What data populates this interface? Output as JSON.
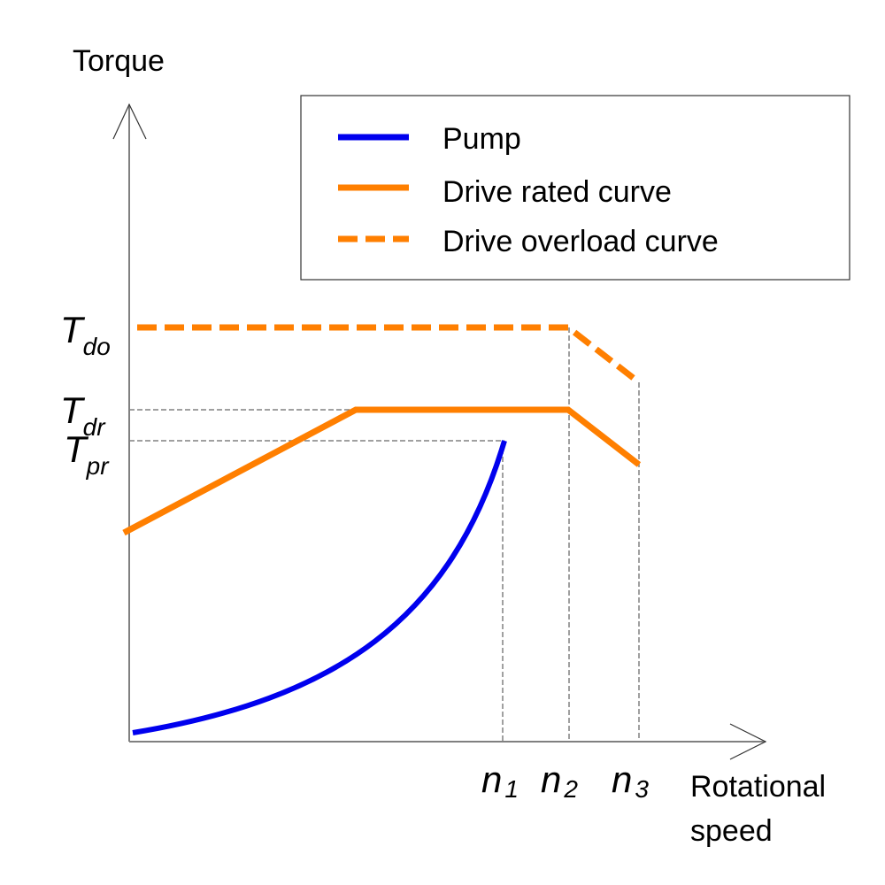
{
  "axes": {
    "y_label": "Torque",
    "x_label_line1": "Rotational",
    "x_label_line2": "speed"
  },
  "legend": {
    "items": [
      {
        "label": "Pump",
        "color": "#0000ee",
        "style": "solid"
      },
      {
        "label": "Drive rated curve",
        "color": "#ff7f00",
        "style": "solid"
      },
      {
        "label": "Drive overload curve",
        "color": "#ff7f00",
        "style": "dashed"
      }
    ]
  },
  "y_markers": [
    {
      "main": "T",
      "sub": "do"
    },
    {
      "main": "T",
      "sub": "dr"
    },
    {
      "main": "T",
      "sub": "pr"
    }
  ],
  "x_markers": [
    {
      "main": "n",
      "sub": "1"
    },
    {
      "main": "n",
      "sub": "2"
    },
    {
      "main": "n",
      "sub": "3"
    }
  ],
  "colors": {
    "pump": "#0000ee",
    "drive": "#ff7f00",
    "guide": "#808080",
    "axis": "#808080"
  }
}
